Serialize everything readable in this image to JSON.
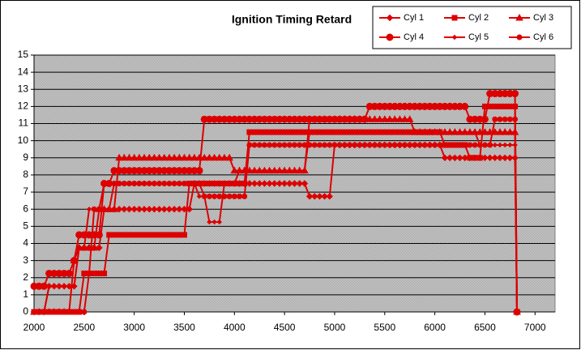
{
  "chart_data": {
    "type": "line",
    "title": "Ignition Timing Retard",
    "legend": "top-right",
    "grid": true,
    "xlim": [
      2000,
      7200
    ],
    "xticks": [
      2000,
      2500,
      3000,
      3500,
      4000,
      4500,
      5000,
      5500,
      6000,
      6500,
      7000
    ],
    "ylim": [
      0,
      15
    ],
    "yticks": [
      0,
      1,
      2,
      3,
      4,
      5,
      6,
      7,
      8,
      9,
      10,
      11,
      12,
      13,
      14,
      15
    ],
    "x": [
      2000,
      2050,
      2100,
      2150,
      2200,
      2250,
      2300,
      2350,
      2400,
      2450,
      2500,
      2550,
      2600,
      2650,
      2700,
      2750,
      2800,
      2850,
      2900,
      2950,
      3000,
      3050,
      3100,
      3150,
      3200,
      3250,
      3300,
      3350,
      3400,
      3450,
      3500,
      3550,
      3600,
      3650,
      3700,
      3750,
      3800,
      3850,
      3900,
      3950,
      4000,
      4050,
      4100,
      4150,
      4200,
      4250,
      4300,
      4350,
      4400,
      4450,
      4500,
      4550,
      4600,
      4650,
      4700,
      4750,
      4800,
      4850,
      4900,
      4950,
      5000,
      5050,
      5100,
      5150,
      5200,
      5250,
      5300,
      5350,
      5400,
      5450,
      5500,
      5550,
      5600,
      5650,
      5700,
      5750,
      5800,
      5850,
      5900,
      5950,
      6000,
      6050,
      6100,
      6150,
      6200,
      6250,
      6300,
      6350,
      6400,
      6450,
      6500,
      6550,
      6600,
      6650,
      6700,
      6750,
      6800,
      6820
    ],
    "series": [
      {
        "name": "Cyl 1",
        "color": "#dd0000",
        "marker": "diamond",
        "values": [
          0,
          0,
          0,
          1.5,
          1.5,
          1.5,
          1.5,
          1.5,
          1.5,
          3.75,
          3.75,
          3.75,
          3.75,
          3.75,
          6,
          6,
          6,
          6,
          6,
          6,
          6,
          6,
          6,
          6,
          6,
          6,
          6,
          6,
          6,
          6,
          6,
          6,
          7.5,
          7.5,
          7.5,
          7.5,
          7.5,
          7.5,
          7.5,
          7.5,
          7.5,
          7.5,
          7.5,
          7.5,
          7.5,
          7.5,
          7.5,
          7.5,
          7.5,
          7.5,
          7.5,
          7.5,
          7.5,
          7.5,
          7.5,
          6.75,
          6.75,
          6.75,
          6.75,
          6.75,
          9.75,
          9.75,
          9.75,
          9.75,
          9.75,
          9.75,
          9.75,
          9.75,
          9.75,
          9.75,
          9.75,
          9.75,
          9.75,
          9.75,
          9.75,
          9.75,
          9.75,
          9.75,
          9.75,
          9.75,
          9.75,
          9.75,
          9,
          9,
          9,
          9,
          9,
          9,
          9,
          9,
          9,
          9,
          9,
          9,
          9,
          9,
          9,
          0
        ]
      },
      {
        "name": "Cyl 2",
        "color": "#dd0000",
        "marker": "square",
        "values": [
          0,
          0,
          0,
          0,
          0,
          0,
          0,
          0,
          0,
          0,
          2.25,
          2.25,
          2.25,
          2.25,
          2.25,
          4.5,
          4.5,
          4.5,
          4.5,
          4.5,
          4.5,
          4.5,
          4.5,
          4.5,
          4.5,
          4.5,
          4.5,
          4.5,
          4.5,
          4.5,
          4.5,
          7.5,
          7.5,
          7.5,
          7.5,
          7.5,
          7.5,
          7.5,
          7.5,
          7.5,
          7.5,
          7.5,
          7.5,
          10.5,
          10.5,
          10.5,
          10.5,
          10.5,
          10.5,
          10.5,
          10.5,
          10.5,
          10.5,
          10.5,
          10.5,
          10.5,
          10.5,
          10.5,
          10.5,
          10.5,
          10.5,
          10.5,
          10.5,
          10.5,
          10.5,
          10.5,
          10.5,
          10.5,
          10.5,
          10.5,
          10.5,
          10.5,
          10.5,
          10.5,
          10.5,
          10.5,
          10.5,
          10.5,
          10.5,
          10.5,
          10.5,
          10.5,
          9.75,
          9.75,
          9.75,
          9.75,
          9.75,
          9,
          9,
          9,
          12,
          12,
          12,
          12,
          12,
          12,
          12,
          0
        ]
      },
      {
        "name": "Cyl 3",
        "color": "#dd0000",
        "marker": "triangle",
        "values": [
          0,
          0,
          0,
          0,
          0,
          0,
          0,
          0,
          3,
          3.75,
          3.75,
          3.75,
          3.75,
          6,
          6,
          6,
          6,
          9,
          9,
          9,
          9,
          9,
          9,
          9,
          9,
          9,
          9,
          9,
          9,
          9,
          9,
          9,
          9,
          9,
          9,
          9,
          9,
          9,
          9,
          9,
          8.25,
          8.25,
          8.25,
          8.25,
          8.25,
          8.25,
          8.25,
          8.25,
          8.25,
          8.25,
          8.25,
          8.25,
          8.25,
          8.25,
          8.25,
          11.25,
          11.25,
          11.25,
          11.25,
          11.25,
          11.25,
          11.25,
          11.25,
          11.25,
          11.25,
          11.25,
          11.25,
          11.25,
          11.25,
          11.25,
          11.25,
          11.25,
          11.25,
          11.25,
          11.25,
          11.25,
          10.5,
          10.5,
          10.5,
          10.5,
          10.5,
          10.5,
          10.5,
          10.5,
          10.5,
          10.5,
          10.5,
          10.5,
          10.5,
          10.5,
          10.5,
          10.5,
          10.5,
          10.5,
          10.5,
          10.5,
          10.5,
          0
        ]
      },
      {
        "name": "Cyl 4",
        "color": "#dd0000",
        "marker": "circle-large",
        "values": [
          1.5,
          1.5,
          1.5,
          2.25,
          2.25,
          2.25,
          2.25,
          2.25,
          3,
          4.5,
          4.5,
          4.5,
          4.5,
          4.5,
          7.5,
          7.5,
          8.25,
          8.25,
          8.25,
          8.25,
          8.25,
          8.25,
          8.25,
          8.25,
          8.25,
          8.25,
          8.25,
          8.25,
          8.25,
          8.25,
          8.25,
          8.25,
          8.25,
          8.25,
          11.25,
          11.25,
          11.25,
          11.25,
          11.25,
          11.25,
          11.25,
          11.25,
          11.25,
          11.25,
          11.25,
          11.25,
          11.25,
          11.25,
          11.25,
          11.25,
          11.25,
          11.25,
          11.25,
          11.25,
          11.25,
          11.25,
          11.25,
          11.25,
          11.25,
          11.25,
          11.25,
          11.25,
          11.25,
          11.25,
          11.25,
          11.25,
          11.25,
          12,
          12,
          12,
          12,
          12,
          12,
          12,
          12,
          12,
          12,
          12,
          12,
          12,
          12,
          12,
          12,
          12,
          12,
          12,
          12,
          11.25,
          11.25,
          11.25,
          11.25,
          12.75,
          12.75,
          12.75,
          12.75,
          12.75,
          12.75,
          0
        ]
      },
      {
        "name": "Cyl 5",
        "color": "#dd0000",
        "marker": "diamond-small",
        "values": [
          0,
          0,
          0,
          1.5,
          1.5,
          1.5,
          1.5,
          1.5,
          1.5,
          3.75,
          3.75,
          6,
          6,
          6,
          6,
          6,
          7.5,
          7.5,
          7.5,
          7.5,
          7.5,
          7.5,
          7.5,
          7.5,
          7.5,
          7.5,
          7.5,
          7.5,
          7.5,
          7.5,
          7.5,
          7.5,
          7.5,
          6.75,
          6.75,
          5.25,
          5.25,
          5.25,
          7.5,
          7.5,
          7.5,
          8.25,
          8.25,
          8.25,
          8.25,
          8.25,
          8.25,
          8.25,
          8.25,
          8.25,
          8.25,
          8.25,
          8.25,
          8.25,
          8.25,
          10.5,
          10.5,
          10.5,
          10.5,
          10.5,
          10.5,
          10.5,
          10.5,
          10.5,
          10.5,
          10.5,
          10.5,
          10.5,
          10.5,
          10.5,
          10.5,
          10.5,
          10.5,
          10.5,
          10.5,
          10.5,
          10.5,
          10.5,
          10.5,
          10.5,
          10.5,
          10.5,
          10.5,
          10.5,
          10.5,
          10.5,
          10.5,
          10.5,
          10.5,
          9.75,
          9.75,
          9.75,
          9.75,
          9.75,
          9.75,
          9.75,
          9.75,
          0
        ]
      },
      {
        "name": "Cyl 6",
        "color": "#dd0000",
        "marker": "circle",
        "values": [
          0,
          0,
          0,
          0,
          0,
          0,
          0,
          0,
          0,
          0,
          0,
          2.25,
          6,
          6,
          7.5,
          7.5,
          7.5,
          7.5,
          7.5,
          7.5,
          7.5,
          7.5,
          7.5,
          7.5,
          7.5,
          7.5,
          7.5,
          7.5,
          7.5,
          7.5,
          7.5,
          7.5,
          7.5,
          7.5,
          6.75,
          6.75,
          6.75,
          6.75,
          6.75,
          6.75,
          6.75,
          6.75,
          6.75,
          9.75,
          9.75,
          9.75,
          9.75,
          9.75,
          9.75,
          9.75,
          9.75,
          9.75,
          9.75,
          9.75,
          9.75,
          9.75,
          9.75,
          9.75,
          9.75,
          9.75,
          9.75,
          9.75,
          9.75,
          9.75,
          9.75,
          9.75,
          9.75,
          9.75,
          9.75,
          9.75,
          9.75,
          9.75,
          9.75,
          9.75,
          9.75,
          9.75,
          9.75,
          9.75,
          9.75,
          9.75,
          9.75,
          9.75,
          9.75,
          9.75,
          9.75,
          9.75,
          9.75,
          9.75,
          9.75,
          9.75,
          9.75,
          9.75,
          11.25,
          11.25,
          11.25,
          11.25,
          11.25,
          0
        ]
      }
    ]
  }
}
